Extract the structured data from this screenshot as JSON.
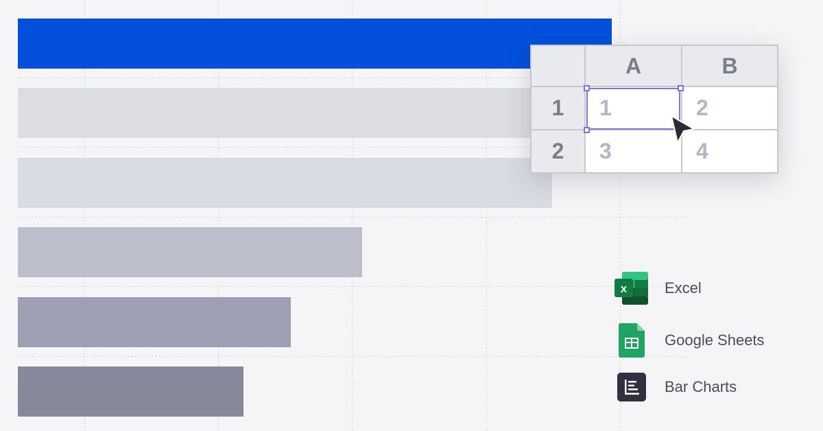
{
  "chart": {
    "bars": [
      {
        "name": "bar-1",
        "value": 100,
        "color": "#0450dc"
      },
      {
        "name": "bar-2",
        "value": 91,
        "color": "#dcdde1"
      },
      {
        "name": "bar-3",
        "value": 90,
        "color": "#d9dbe3"
      },
      {
        "name": "bar-4",
        "value": 58,
        "color": "#bcbecc"
      },
      {
        "name": "bar-5",
        "value": 46,
        "color": "#9da0b2"
      },
      {
        "name": "bar-6",
        "value": 38,
        "color": "#868999"
      }
    ]
  },
  "spreadsheet": {
    "columns": [
      "A",
      "B"
    ],
    "rows": [
      {
        "header": "1",
        "cells": [
          "1",
          "2"
        ]
      },
      {
        "header": "2",
        "cells": [
          "3",
          "4"
        ]
      }
    ],
    "selected_cell": "A1",
    "selection_color": "#8a6de0"
  },
  "legend": [
    {
      "label": "Excel",
      "icon": "excel-icon",
      "color": "#1f7244"
    },
    {
      "label": "Google Sheets",
      "icon": "google-sheets-icon",
      "color": "#1fa463"
    },
    {
      "label": "Bar Charts",
      "icon": "bar-charts-icon",
      "color": "#2f3140"
    }
  ]
}
